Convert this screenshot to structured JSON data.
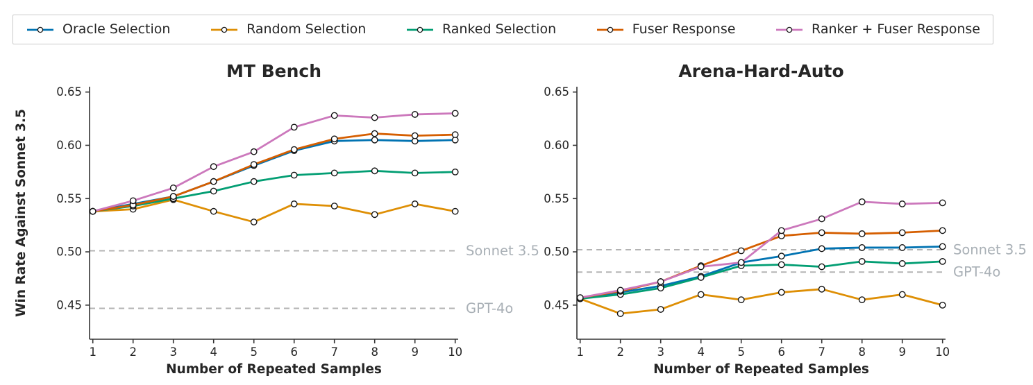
{
  "legend": {
    "items": [
      {
        "label": "Oracle Selection",
        "color": "#0173b2"
      },
      {
        "label": "Random Selection",
        "color": "#de8f05"
      },
      {
        "label": "Ranked Selection",
        "color": "#029e73"
      },
      {
        "label": "Fuser Response",
        "color": "#d55e00"
      },
      {
        "label": "Ranker + Fuser Response",
        "color": "#cc78bc"
      }
    ]
  },
  "style": {
    "text_color": "#262626",
    "axis_color": "#333333",
    "baseline_dash_color": "#b3b3b3",
    "annotation_color": "#a9b0b6",
    "marker_edge_color": "#141414",
    "marker_fill_color": "#ffffff",
    "background": "#ffffff"
  },
  "chart_data": [
    {
      "type": "line",
      "title": "MT Bench",
      "xlabel": "Number of Repeated Samples",
      "ylabel": "Win Rate Against Sonnet 3.5",
      "x": [
        1,
        2,
        3,
        4,
        5,
        6,
        7,
        8,
        9,
        10
      ],
      "yticks": [
        0.45,
        0.5,
        0.55,
        0.6,
        0.65
      ],
      "ylim": [
        0.418,
        0.655
      ],
      "grid": false,
      "legend_position": "top-outside-shared",
      "series": [
        {
          "name": "Oracle Selection",
          "color": "#0173b2",
          "values": [
            0.538,
            0.545,
            0.552,
            0.566,
            0.581,
            0.595,
            0.604,
            0.605,
            0.604,
            0.605
          ]
        },
        {
          "name": "Random Selection",
          "color": "#de8f05",
          "values": [
            0.538,
            0.54,
            0.549,
            0.538,
            0.528,
            0.545,
            0.543,
            0.535,
            0.545,
            0.538
          ]
        },
        {
          "name": "Ranked Selection",
          "color": "#029e73",
          "values": [
            0.538,
            0.543,
            0.55,
            0.557,
            0.566,
            0.572,
            0.574,
            0.576,
            0.574,
            0.575
          ]
        },
        {
          "name": "Fuser Response",
          "color": "#d55e00",
          "values": [
            0.538,
            0.544,
            0.552,
            0.566,
            0.582,
            0.596,
            0.606,
            0.611,
            0.609,
            0.61
          ]
        },
        {
          "name": "Ranker + Fuser Response",
          "color": "#cc78bc",
          "values": [
            0.538,
            0.548,
            0.56,
            0.58,
            0.594,
            0.617,
            0.628,
            0.626,
            0.629,
            0.63
          ]
        }
      ],
      "baselines": [
        {
          "label": "Sonnet 3.5",
          "value": 0.501
        },
        {
          "label": "GPT-4o",
          "value": 0.447
        }
      ]
    },
    {
      "type": "line",
      "title": "Arena-Hard-Auto",
      "xlabel": "Number of Repeated Samples",
      "ylabel": "",
      "x": [
        1,
        2,
        3,
        4,
        5,
        6,
        7,
        8,
        9,
        10
      ],
      "yticks": [
        0.45,
        0.5,
        0.55,
        0.6,
        0.65
      ],
      "ylim": [
        0.418,
        0.655
      ],
      "grid": false,
      "legend_position": "top-outside-shared",
      "series": [
        {
          "name": "Oracle Selection",
          "color": "#0173b2",
          "values": [
            0.456,
            0.462,
            0.468,
            0.477,
            0.49,
            0.496,
            0.503,
            0.504,
            0.504,
            0.505
          ]
        },
        {
          "name": "Random Selection",
          "color": "#de8f05",
          "values": [
            0.456,
            0.442,
            0.446,
            0.46,
            0.455,
            0.462,
            0.465,
            0.455,
            0.46,
            0.45
          ]
        },
        {
          "name": "Ranked Selection",
          "color": "#029e73",
          "values": [
            0.456,
            0.46,
            0.466,
            0.476,
            0.487,
            0.488,
            0.486,
            0.491,
            0.489,
            0.491
          ]
        },
        {
          "name": "Fuser Response",
          "color": "#d55e00",
          "values": [
            0.457,
            0.463,
            0.472,
            0.487,
            0.501,
            0.515,
            0.518,
            0.517,
            0.518,
            0.52
          ]
        },
        {
          "name": "Ranker + Fuser Response",
          "color": "#cc78bc",
          "values": [
            0.457,
            0.464,
            0.472,
            0.486,
            0.49,
            0.52,
            0.531,
            0.547,
            0.545,
            0.546
          ]
        }
      ],
      "baselines": [
        {
          "label": "Sonnet 3.5",
          "value": 0.502
        },
        {
          "label": "GPT-4o",
          "value": 0.481
        }
      ]
    }
  ]
}
